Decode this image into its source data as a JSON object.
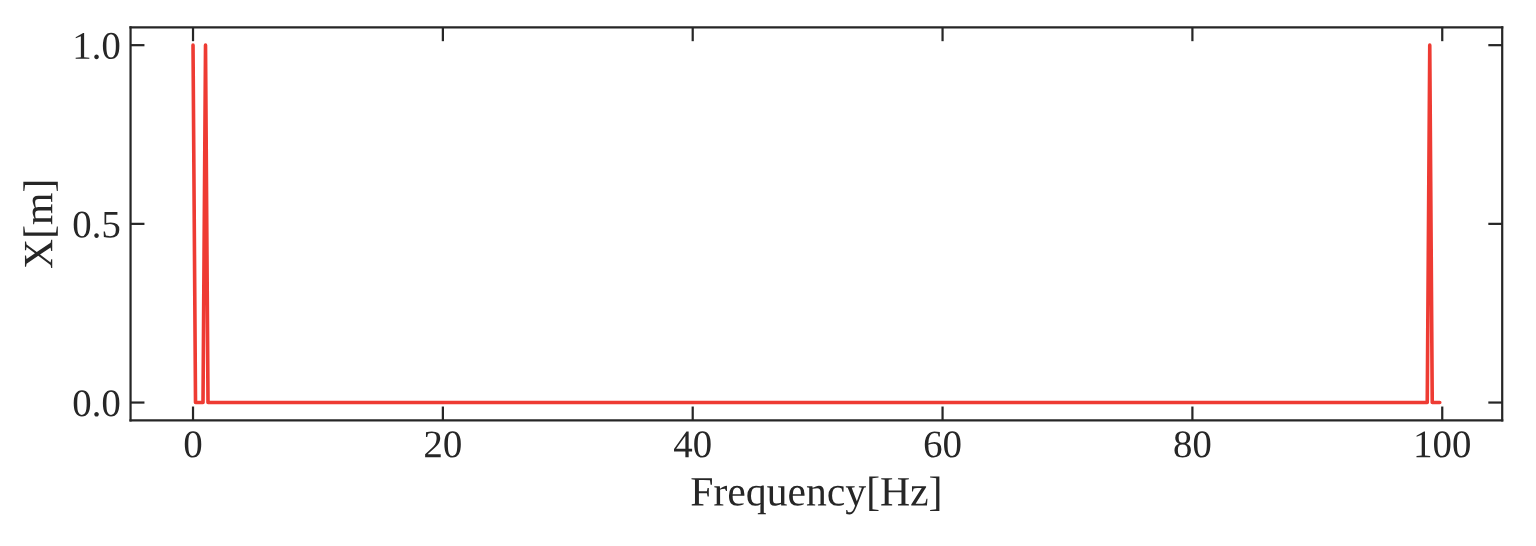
{
  "chart_data": {
    "type": "line",
    "xlabel": "Frequency[Hz]",
    "ylabel": "X[m]",
    "x": [
      0,
      0.2,
      0.8,
      1.0,
      1.2,
      98.8,
      99.0,
      99.2,
      99.8
    ],
    "series": [
      {
        "color": "#ee3b33",
        "values": [
          1.0,
          0,
          0,
          1.0,
          0,
          0,
          1.0,
          0,
          0
        ]
      }
    ],
    "xlim": [
      -5,
      104.8
    ],
    "ylim": [
      -0.05,
      1.05
    ],
    "xticks": [
      0,
      20,
      40,
      60,
      80,
      100
    ],
    "yticks": [
      {
        "value": 0,
        "label": "0.0"
      },
      {
        "value": 0.5,
        "label": "0.5"
      },
      {
        "value": 1.0,
        "label": "1.0"
      }
    ],
    "grid": false,
    "marker": "none",
    "line_style": "solid"
  }
}
